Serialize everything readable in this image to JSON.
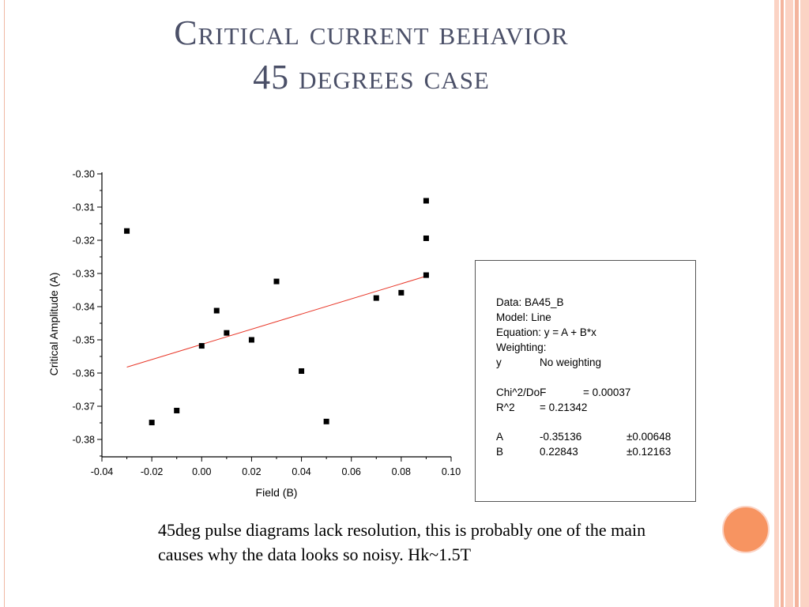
{
  "slide": {
    "title_line1": "Critical current behavior",
    "title_line2": "45 degrees case",
    "caption": "45deg pulse diagrams lack resolution, this is probably one of the main causes why the data looks so noisy. Hk~1.5T"
  },
  "colors": {
    "title": "#4b5068",
    "accent_orange": "#f79461",
    "stripe_light": "#fbd3c4",
    "stripe_mid": "#f4b59e",
    "fit_line": "#e8382a",
    "markers": "#000000"
  },
  "stats": {
    "data": "Data: BA45_B",
    "model": "Model: Line",
    "equation": "Equation: y = A + B*x",
    "weighting": "Weighting:",
    "weight_y": "y",
    "weight_value": "No weighting",
    "chi_label": "Chi^2/DoF",
    "chi_value": "= 0.00037",
    "r2_label": "R^2",
    "r2_value": "=  0.21342",
    "param_a": "A",
    "param_a_value": "-0.35136",
    "param_a_err": "±0.00648",
    "param_b": "B",
    "param_b_value": "0.22843",
    "param_b_err": "±0.12163"
  },
  "chart_data": {
    "type": "scatter",
    "xlabel": "Field (B)",
    "ylabel": "Critical Amplitude (A)",
    "xlim": [
      -0.04,
      0.1
    ],
    "ylim": [
      -0.385,
      -0.3
    ],
    "x_ticks": [
      "-0.04",
      "-0.02",
      "0.00",
      "0.02",
      "0.04",
      "0.06",
      "0.08",
      "0.10"
    ],
    "y_ticks": [
      "-0.30",
      "-0.31",
      "-0.32",
      "-0.33",
      "-0.34",
      "-0.35",
      "-0.36",
      "-0.37",
      "-0.38"
    ],
    "grid": false,
    "marker": "square",
    "points": [
      {
        "x": -0.03,
        "y": -0.3172
      },
      {
        "x": -0.02,
        "y": -0.3749
      },
      {
        "x": -0.01,
        "y": -0.3713
      },
      {
        "x": 0.0,
        "y": -0.3518
      },
      {
        "x": 0.006,
        "y": -0.3412
      },
      {
        "x": 0.01,
        "y": -0.3479
      },
      {
        "x": 0.02,
        "y": -0.35
      },
      {
        "x": 0.03,
        "y": -0.3324
      },
      {
        "x": 0.04,
        "y": -0.3594
      },
      {
        "x": 0.05,
        "y": -0.3746
      },
      {
        "x": 0.07,
        "y": -0.3374
      },
      {
        "x": 0.08,
        "y": -0.3358
      },
      {
        "x": 0.09,
        "y": -0.3081
      },
      {
        "x": 0.09,
        "y": -0.3194
      },
      {
        "x": 0.09,
        "y": -0.3305
      }
    ],
    "fit": {
      "intercept": -0.35136,
      "slope": 0.22843,
      "x_range": [
        -0.03,
        0.09
      ]
    }
  }
}
